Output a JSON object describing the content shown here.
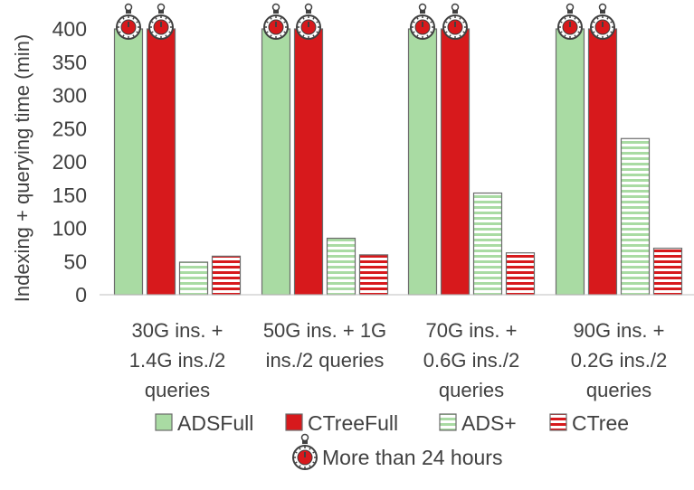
{
  "chart_data": {
    "type": "bar",
    "ylabel": "Indexing + querying time (min)",
    "ylim": [
      0,
      400
    ],
    "yticks": [
      0,
      50,
      100,
      150,
      200,
      250,
      300,
      350,
      400
    ],
    "categories": [
      [
        "30G ins. +",
        "1.4G ins./2",
        "queries"
      ],
      [
        "50G ins. + 1G",
        "ins./2 queries"
      ],
      [
        "70G ins. +",
        "0.6G ins./2",
        "queries"
      ],
      [
        "90G ins. +",
        "0.2G ins./2",
        "queries"
      ]
    ],
    "series": [
      {
        "name": "ADSFull",
        "values": [
          400,
          400,
          400,
          400
        ],
        "exceeds_limit": [
          true,
          true,
          true,
          true
        ],
        "fill": "#a9dba3",
        "stroke": "#6b6b6b",
        "pattern": "solid"
      },
      {
        "name": "CTreeFull",
        "values": [
          400,
          400,
          400,
          400
        ],
        "exceeds_limit": [
          true,
          true,
          true,
          true
        ],
        "fill": "#d7191c",
        "stroke": "#6b6b6b",
        "pattern": "solid"
      },
      {
        "name": "ADS+",
        "values": [
          49,
          85,
          153,
          235
        ],
        "exceeds_limit": [
          false,
          false,
          false,
          false
        ],
        "fill": "#a9dba3",
        "stroke": "#6b6b6b",
        "pattern": "stripes"
      },
      {
        "name": "CTree",
        "values": [
          58,
          60,
          63,
          70
        ],
        "exceeds_limit": [
          false,
          false,
          false,
          false
        ],
        "fill": "#d7191c",
        "stroke": "#6b6b6b",
        "pattern": "stripes"
      }
    ],
    "timeout_marker": {
      "label": "More than 24 hours",
      "icon": "stopwatch-icon"
    },
    "legend_position": "bottom",
    "grid": false
  }
}
